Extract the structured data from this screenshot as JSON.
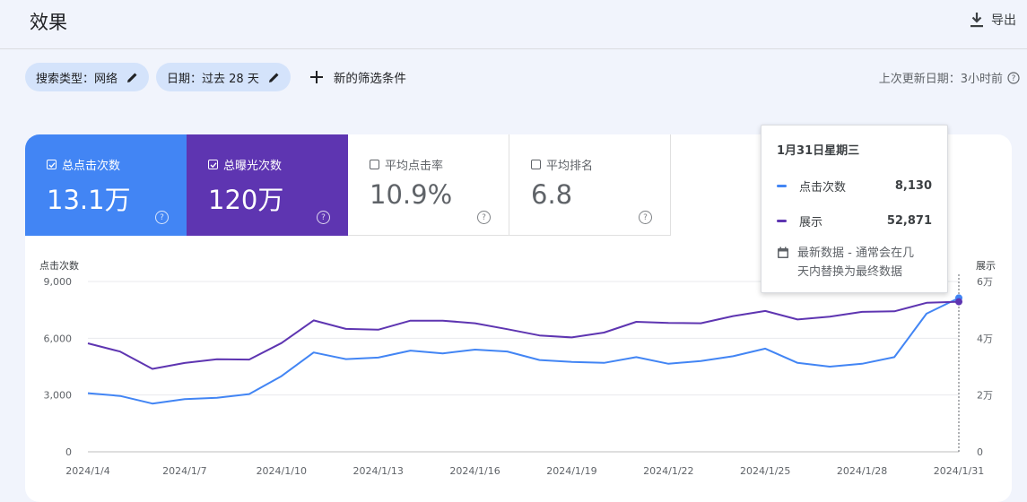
{
  "header": {
    "title": "效果",
    "export_label": "导出"
  },
  "filters": {
    "search_type": "搜索类型：网络",
    "date": "日期：过去 28 天",
    "new_filter": "新的筛选条件"
  },
  "last_updated": "上次更新日期：3小时前",
  "metrics": {
    "clicks": {
      "label": "总点击次数",
      "value": "13.1万",
      "checked": true
    },
    "impressions": {
      "label": "总曝光次数",
      "value": "120万",
      "checked": true
    },
    "ctr": {
      "label": "平均点击率",
      "value": "10.9%",
      "checked": false
    },
    "position": {
      "label": "平均排名",
      "value": "6.8",
      "checked": false
    }
  },
  "colors": {
    "clicks": "#4285f4",
    "impressions": "#5e35b1",
    "background": "#f1f4fc"
  },
  "tooltip": {
    "date": "1月31日星期三",
    "clicks_label": "点击次数",
    "clicks_value": "8,130",
    "impr_label": "展示",
    "impr_value": "52,871",
    "note_line1": "最新数据 - 通常会在几",
    "note_line2": "天内替换为最终数据"
  },
  "chart_data": {
    "type": "line",
    "ylabel_left": "点击次数",
    "ylabel_right": "展示",
    "left_ticks": [
      "0",
      "3,000",
      "6,000",
      "9,000"
    ],
    "right_ticks": [
      "0",
      "2万",
      "4万",
      "6万"
    ],
    "ylim_left": [
      0,
      9000
    ],
    "ylim_right": [
      0,
      60000
    ],
    "x_tick_labels": [
      "2024/1/4",
      "2024/1/7",
      "2024/1/10",
      "2024/1/13",
      "2024/1/16",
      "2024/1/19",
      "2024/1/22",
      "2024/1/25",
      "2024/1/28",
      "2024/1/31"
    ],
    "x": [
      "2024/1/4",
      "2024/1/5",
      "2024/1/6",
      "2024/1/7",
      "2024/1/8",
      "2024/1/9",
      "2024/1/10",
      "2024/1/11",
      "2024/1/12",
      "2024/1/13",
      "2024/1/14",
      "2024/1/15",
      "2024/1/16",
      "2024/1/17",
      "2024/1/18",
      "2024/1/19",
      "2024/1/20",
      "2024/1/21",
      "2024/1/22",
      "2024/1/23",
      "2024/1/24",
      "2024/1/25",
      "2024/1/26",
      "2024/1/27",
      "2024/1/28",
      "2024/1/29",
      "2024/1/30",
      "2024/1/31"
    ],
    "series": [
      {
        "name": "点击次数",
        "axis": "left",
        "color": "#4285f4",
        "values": [
          3100,
          2950,
          2550,
          2780,
          2850,
          3050,
          4000,
          5250,
          4900,
          4980,
          5350,
          5200,
          5400,
          5300,
          4850,
          4750,
          4700,
          5000,
          4650,
          4800,
          5050,
          5450,
          4700,
          4500,
          4650,
          5000,
          7300,
          8130
        ]
      },
      {
        "name": "展示",
        "axis": "right",
        "color": "#5e35b1",
        "values": [
          38200,
          35300,
          29200,
          31300,
          32600,
          32500,
          38300,
          46300,
          43300,
          43000,
          46200,
          46200,
          45300,
          43200,
          41000,
          40300,
          42000,
          45800,
          45400,
          45300,
          47800,
          49600,
          46600,
          47600,
          49300,
          49500,
          52500,
          52871
        ]
      }
    ]
  }
}
